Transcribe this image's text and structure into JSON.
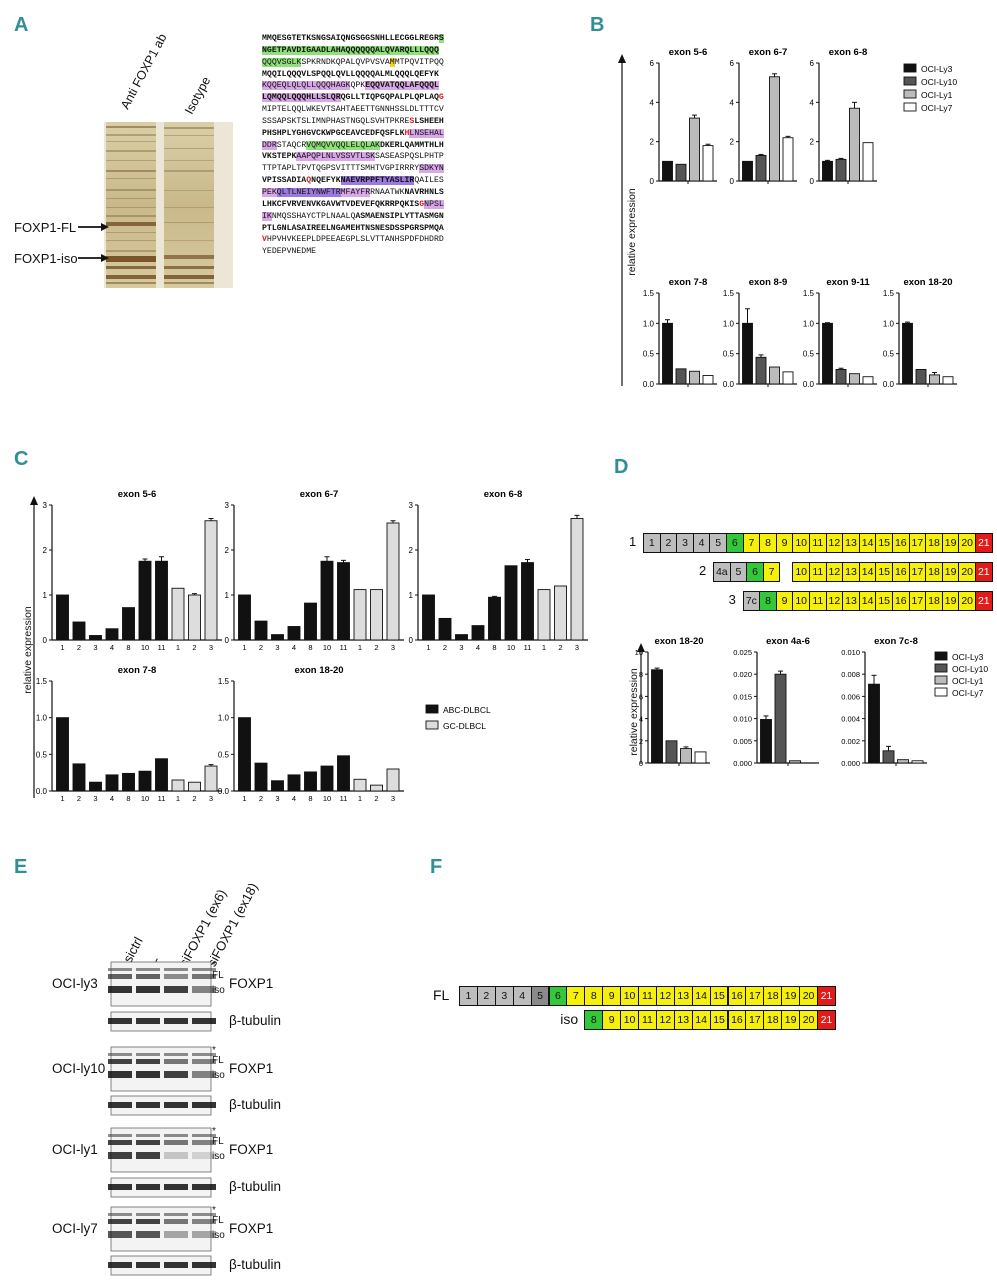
{
  "panel_letters": {
    "A": "A",
    "B": "B",
    "C": "C",
    "D": "D",
    "E": "E",
    "F": "F"
  },
  "panelA": {
    "lane_labels": [
      "Anti FOXP1 ab",
      "Isotype"
    ],
    "band_labels": [
      "FOXP1-FL",
      "FOXP1-iso"
    ],
    "sequence_lines": [
      [
        {
          "t": "MMQESGTETKSNGSAIQNGSGGSNHLLECGGLREGR",
          "c": "b"
        },
        {
          "t": "S",
          "c": "b g"
        }
      ],
      [
        {
          "t": "NGETPAVDIGAADLAHAQQQQQQALQVARQLLLQQQ",
          "c": "b g"
        }
      ],
      [
        {
          "t": "QQQVSGLK",
          "c": "g"
        },
        {
          "t": "SPKRNDKQPALQVPVSVA",
          "c": ""
        },
        {
          "t": "M",
          "c": "y"
        },
        {
          "t": "MTPQVITPQQ",
          "c": ""
        }
      ],
      [
        {
          "t": "MQQILQQQVLSPQQLQVLLQQQQALMLQQQLQEFYK",
          "c": "b"
        }
      ],
      [
        {
          "t": "KQQEQLQLQLLQQQHAGK",
          "c": "p"
        },
        {
          "t": "QPK",
          "c": ""
        },
        {
          "t": "EQQVATQQLAFQQQL",
          "c": "b p"
        }
      ],
      [
        {
          "t": "LQMQQLQQQHLLSLQR",
          "c": "b p"
        },
        {
          "t": "QGLLTIQPGQPALPLQPLAQ",
          "c": "b"
        },
        {
          "t": "G",
          "c": "r"
        }
      ],
      [
        {
          "t": "MIPTELQQLWKEVTSAHTAEETTGNNHSSLDLTTTCV",
          "c": ""
        }
      ],
      [
        {
          "t": "SSSAPSKTSLIMNPHASTNGQLSVHTPKRE",
          "c": ""
        },
        {
          "t": "S",
          "c": "r"
        },
        {
          "t": "LSHEEH",
          "c": "b"
        }
      ],
      [
        {
          "t": "PHSHPLYGHGVCKWPGCEAVCEDFQSFLK",
          "c": "b"
        },
        {
          "t": "H",
          "c": "r"
        },
        {
          "t": "LNSEHAL",
          "c": "p"
        }
      ],
      [
        {
          "t": "DDR",
          "c": "p"
        },
        {
          "t": "STAQCR",
          "c": ""
        },
        {
          "t": "VQMQVVQQLELQLAK",
          "c": "g"
        },
        {
          "t": "DKERLQAMMTHLH",
          "c": "b"
        }
      ],
      [
        {
          "t": "VKSTEPK",
          "c": "b"
        },
        {
          "t": "AAPQP",
          "c": "p"
        },
        {
          "t": "LNLVSSVTLSK",
          "c": "p"
        },
        {
          "t": "SASEASPQSLPHTP",
          "c": ""
        }
      ],
      [
        {
          "t": "TTPTAPLTPVTQGPSVITTTSMHTVGPIRRRY",
          "c": ""
        },
        {
          "t": "SDKYN",
          "c": "p"
        }
      ],
      [
        {
          "t": "VPISSADIA",
          "c": "b"
        },
        {
          "t": "Q",
          "c": "r"
        },
        {
          "t": "NQEFYK",
          "c": "b"
        },
        {
          "t": "NAEVRPPFTYASLIR",
          "c": "b v"
        },
        {
          "t": "QAILES",
          "c": ""
        }
      ],
      [
        {
          "t": "PEK",
          "c": "p"
        },
        {
          "t": "QLTLNEIYNWFTR",
          "c": "v"
        },
        {
          "t": "MFAYFR",
          "c": "p"
        },
        {
          "t": "RNAATWK",
          "c": ""
        },
        {
          "t": "NAVRHNLS",
          "c": "b"
        }
      ],
      [
        {
          "t": "LHKCFVRVENVKGAVWTVDEVEFQKRRPQKIS",
          "c": "b"
        },
        {
          "t": "G",
          "c": "r"
        },
        {
          "t": "NPSL",
          "c": "p"
        }
      ],
      [
        {
          "t": "IK",
          "c": "p"
        },
        {
          "t": "NMQSSHAYCTPLNAALQ",
          "c": ""
        },
        {
          "t": "ASMAENSIPLYTTASMGN",
          "c": "b"
        }
      ],
      [
        {
          "t": "PTLGNLASAIREELNGAMEHTNSNESDSSPGRSPMQA",
          "c": "b"
        }
      ],
      [
        {
          "t": "V",
          "c": "r"
        },
        {
          "t": "HPVHVKEEPLDPEEAEGPLSLVTTANHSPDFDHDRD",
          "c": ""
        }
      ],
      [
        {
          "t": "YEDEPVNEDME",
          "c": ""
        }
      ]
    ]
  },
  "panelB": {
    "ylabel": "relative expression",
    "legend": [
      "OCI-Ly3",
      "OCI-Ly10",
      "OCI-Ly1",
      "OCI-Ly7"
    ],
    "colors": [
      "#111111",
      "#555555",
      "#bbbbbb",
      "#ffffff"
    ],
    "chart_data": [
      {
        "type": "bar",
        "title": "exon 5-6",
        "ylim": [
          0,
          6
        ],
        "ticks": [
          "0",
          "2",
          "4",
          "6"
        ],
        "values": [
          1.0,
          0.85,
          3.2,
          1.8
        ],
        "errors": [
          0,
          0,
          0.15,
          0.07
        ]
      },
      {
        "type": "bar",
        "title": "exon 6-7",
        "ylim": [
          0,
          6
        ],
        "ticks": [
          "0",
          "2",
          "4",
          "6"
        ],
        "values": [
          1.0,
          1.3,
          5.3,
          2.2
        ],
        "errors": [
          0,
          0.05,
          0.15,
          0.07
        ]
      },
      {
        "type": "bar",
        "title": "exon 6-8",
        "ylim": [
          0,
          6
        ],
        "ticks": [
          "0",
          "2",
          "4",
          "6"
        ],
        "values": [
          1.0,
          1.1,
          3.7,
          1.95
        ],
        "errors": [
          0.05,
          0.05,
          0.3,
          0
        ]
      },
      {
        "type": "bar",
        "title": "exon 7-8",
        "ylim": [
          0,
          1.5
        ],
        "ticks": [
          "0.0",
          "0.5",
          "1.0",
          "1.5"
        ],
        "values": [
          1.0,
          0.25,
          0.21,
          0.14
        ],
        "errors": [
          0.06,
          0,
          0,
          0
        ]
      },
      {
        "type": "bar",
        "title": "exon 8-9",
        "ylim": [
          0,
          1.5
        ],
        "ticks": [
          "0.0",
          "0.5",
          "1.0",
          "1.5"
        ],
        "values": [
          1.0,
          0.44,
          0.28,
          0.2
        ],
        "errors": [
          0.24,
          0.04,
          0,
          0
        ]
      },
      {
        "type": "bar",
        "title": "exon 9-11",
        "ylim": [
          0,
          1.5
        ],
        "ticks": [
          "0.0",
          "0.5",
          "1.0",
          "1.5"
        ],
        "values": [
          1.0,
          0.24,
          0.17,
          0.12
        ],
        "errors": [
          0.01,
          0.02,
          0,
          0
        ]
      },
      {
        "type": "bar",
        "title": "exon 18-20",
        "ylim": [
          0,
          1.5
        ],
        "ticks": [
          "0.0",
          "0.5",
          "1.0",
          "1.5"
        ],
        "values": [
          1.0,
          0.24,
          0.15,
          0.12
        ],
        "errors": [
          0.02,
          0,
          0.04,
          0
        ]
      }
    ]
  },
  "panelC": {
    "ylabel": "relative expression",
    "legend": [
      "ABC-DLBCL",
      "GC-DLBCL"
    ],
    "colors": [
      "#111111",
      "#dddddd"
    ],
    "categories": [
      "1",
      "2",
      "3",
      "4",
      "8",
      "10",
      "11",
      "1",
      "2",
      "3"
    ],
    "groups": [
      0,
      0,
      0,
      0,
      0,
      0,
      0,
      1,
      1,
      1
    ],
    "chart_data": [
      {
        "type": "bar",
        "title": "exon 5-6",
        "ylim": [
          0,
          3
        ],
        "ticks": [
          "0",
          "1",
          "2",
          "3"
        ],
        "values": [
          1.0,
          0.4,
          0.1,
          0.25,
          0.72,
          1.75,
          1.75,
          1.15,
          1.0,
          2.65
        ],
        "errors": [
          0,
          0,
          0,
          0,
          0,
          0.05,
          0.1,
          0,
          0.03,
          0.05
        ]
      },
      {
        "type": "bar",
        "title": "exon 6-7",
        "ylim": [
          0,
          3
        ],
        "ticks": [
          "0",
          "1",
          "2",
          "3"
        ],
        "values": [
          1.0,
          0.42,
          0.12,
          0.3,
          0.82,
          1.75,
          1.72,
          1.12,
          1.12,
          2.6
        ],
        "errors": [
          0,
          0,
          0,
          0,
          0,
          0.1,
          0.05,
          0,
          0,
          0.05
        ]
      },
      {
        "type": "bar",
        "title": "exon 6-8",
        "ylim": [
          0,
          3
        ],
        "ticks": [
          "0",
          "1",
          "2",
          "3"
        ],
        "values": [
          1.0,
          0.48,
          0.12,
          0.32,
          0.95,
          1.65,
          1.72,
          1.12,
          1.2,
          2.7
        ],
        "errors": [
          0,
          0,
          0,
          0,
          0.02,
          0,
          0.07,
          0,
          0,
          0.07
        ]
      },
      {
        "type": "bar",
        "title": "exon 7-8",
        "ylim": [
          0,
          1.5
        ],
        "ticks": [
          "0.0",
          "0.5",
          "1.0",
          "1.5"
        ],
        "values": [
          1.0,
          0.37,
          0.12,
          0.22,
          0.24,
          0.27,
          0.44,
          0.15,
          0.12,
          0.34
        ],
        "errors": [
          0,
          0,
          0,
          0,
          0,
          0,
          0,
          0,
          0,
          0.02
        ]
      },
      {
        "type": "bar",
        "title": "exon 18-20",
        "ylim": [
          0,
          1.5
        ],
        "ticks": [
          "0.0",
          "0.5",
          "1.0",
          "1.5"
        ],
        "values": [
          1.0,
          0.38,
          0.14,
          0.22,
          0.26,
          0.34,
          0.48,
          0.16,
          0.08,
          0.3
        ],
        "errors": [
          0,
          0,
          0,
          0,
          0,
          0,
          0,
          0,
          0,
          0
        ]
      }
    ]
  },
  "panelD": {
    "isoforms": [
      {
        "label": "1",
        "exons": [
          "1",
          "2",
          "3",
          "4",
          "5",
          "6",
          "7",
          "8",
          "9",
          "10",
          "11",
          "12",
          "13",
          "14",
          "15",
          "16",
          "17",
          "18",
          "19",
          "20",
          "21"
        ]
      },
      {
        "label": "2",
        "exons": [
          "4a",
          "5",
          "6",
          "7",
          "10",
          "11",
          "12",
          "13",
          "14",
          "15",
          "16",
          "17",
          "18",
          "19",
          "20",
          "21"
        ]
      },
      {
        "label": "3",
        "exons": [
          "7c",
          "8",
          "9",
          "10",
          "11",
          "12",
          "13",
          "14",
          "15",
          "16",
          "17",
          "18",
          "19",
          "20",
          "21"
        ]
      }
    ],
    "ylabel": "relative expression",
    "legend": [
      "OCI-Ly3",
      "OCI-Ly10",
      "OCI-Ly1",
      "OCI-Ly7"
    ],
    "colors": [
      "#111111",
      "#555555",
      "#bbbbbb",
      "#ffffff"
    ],
    "chart_data": [
      {
        "type": "bar",
        "title": "exon 18-20",
        "ylim": [
          0,
          10
        ],
        "ticks": [
          "0",
          "2",
          "4",
          "6",
          "8",
          "10"
        ],
        "values": [
          8.4,
          2.0,
          1.3,
          1.0
        ],
        "errors": [
          0.15,
          0,
          0.15,
          0
        ]
      },
      {
        "type": "bar",
        "title": "exon 4a-6",
        "ylim": [
          0,
          0.025
        ],
        "ticks": [
          "0.000",
          "0.005",
          "0.010",
          "0.015",
          "0.020",
          "0.025"
        ],
        "values": [
          0.0098,
          0.02,
          0.0005,
          0.0
        ],
        "errors": [
          0.0008,
          0.0007,
          0,
          0
        ]
      },
      {
        "type": "bar",
        "title": "exon 7c-8",
        "ylim": [
          0,
          0.01
        ],
        "ticks": [
          "0.000",
          "0.002",
          "0.004",
          "0.006",
          "0.008",
          "0.010"
        ],
        "values": [
          0.0071,
          0.0011,
          0.0003,
          0.0002
        ],
        "errors": [
          0.0008,
          0.0004,
          0,
          0
        ]
      }
    ]
  },
  "panelE": {
    "lane_labels": [
      "sictrl",
      "-",
      "siFOXP1 (ex6)",
      "siFOXP1 (ex18)"
    ],
    "rows": [
      {
        "cell": "OCI-ly3",
        "protein": "FOXP1",
        "control": "β-tubulin",
        "marks": [
          "*",
          "FL",
          "iso"
        ]
      },
      {
        "cell": "OCI-ly10",
        "protein": "FOXP1",
        "control": "β-tubulin",
        "marks": [
          "*",
          "FL",
          "iso"
        ]
      },
      {
        "cell": "OCI-ly1",
        "protein": "FOXP1",
        "control": "β-tubulin",
        "marks": [
          "*",
          "FL",
          "iso"
        ]
      },
      {
        "cell": "OCI-ly7",
        "protein": "FOXP1",
        "control": "β-tubulin",
        "marks": [
          "*",
          "FL",
          "iso"
        ]
      }
    ]
  },
  "panelF": {
    "isoforms": [
      {
        "label": "FL",
        "exons": [
          "1",
          "2",
          "3",
          "4",
          "5",
          "6",
          "7",
          "8",
          "9",
          "10",
          "11",
          "12",
          "13",
          "14",
          "15",
          "16",
          "17",
          "18",
          "19",
          "20",
          "21"
        ]
      },
      {
        "label": "iso",
        "exons": [
          "8",
          "9",
          "10",
          "11",
          "12",
          "13",
          "14",
          "15",
          "16",
          "17",
          "18",
          "19",
          "20",
          "21"
        ]
      }
    ]
  }
}
